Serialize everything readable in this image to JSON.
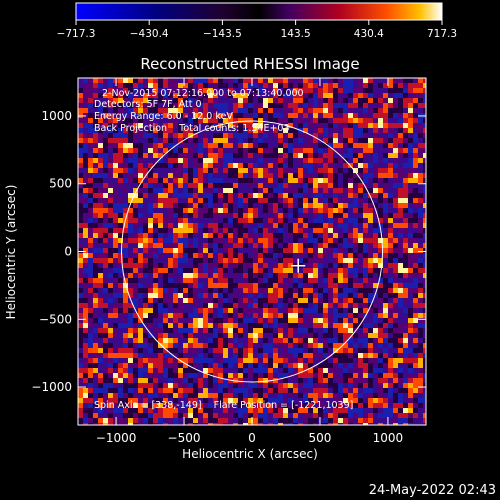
{
  "chart_data": {
    "type": "heatmap",
    "title": "Reconstructed RHESSI Image",
    "xlabel": "Heliocentric X (arcsec)",
    "ylabel": "Heliocentric Y (arcsec)",
    "xlim": [
      -1280,
      1280
    ],
    "ylim": [
      -1280,
      1280
    ],
    "x_ticks": [
      -1000,
      -500,
      0,
      500,
      1000
    ],
    "y_ticks": [
      -1000,
      -500,
      0,
      500,
      1000
    ],
    "colorbar": {
      "min": -717.3,
      "max": 717.3,
      "tick_values": [
        -717.3,
        -430.4,
        -143.5,
        143.5,
        430.4,
        717.3
      ],
      "tick_labels": [
        "−717.3",
        "−430.4",
        "−143.5",
        "143.5",
        "430.4",
        "717.3"
      ]
    },
    "annotations": [
      "2-Nov-2015 07:12:16.000 to 07:13:40.000",
      "Detectors: 5F 7F, Att 0",
      "Energy Range: 6.0 - 12.0 keV",
      "Back Projection    Total counts: 1.54E+03"
    ],
    "footer_annotation": "Spin Axis = [338,-149]    Flare Position = [-1221,1039]",
    "solar_disk": {
      "center": [
        0,
        0
      ],
      "radius": 960
    },
    "flare_marker": [
      340,
      -105
    ],
    "grid": false
  },
  "page": {
    "timestamp": "24-May-2022 02:43"
  },
  "colors": {
    "background": "#000000",
    "foreground": "#ffffff"
  }
}
